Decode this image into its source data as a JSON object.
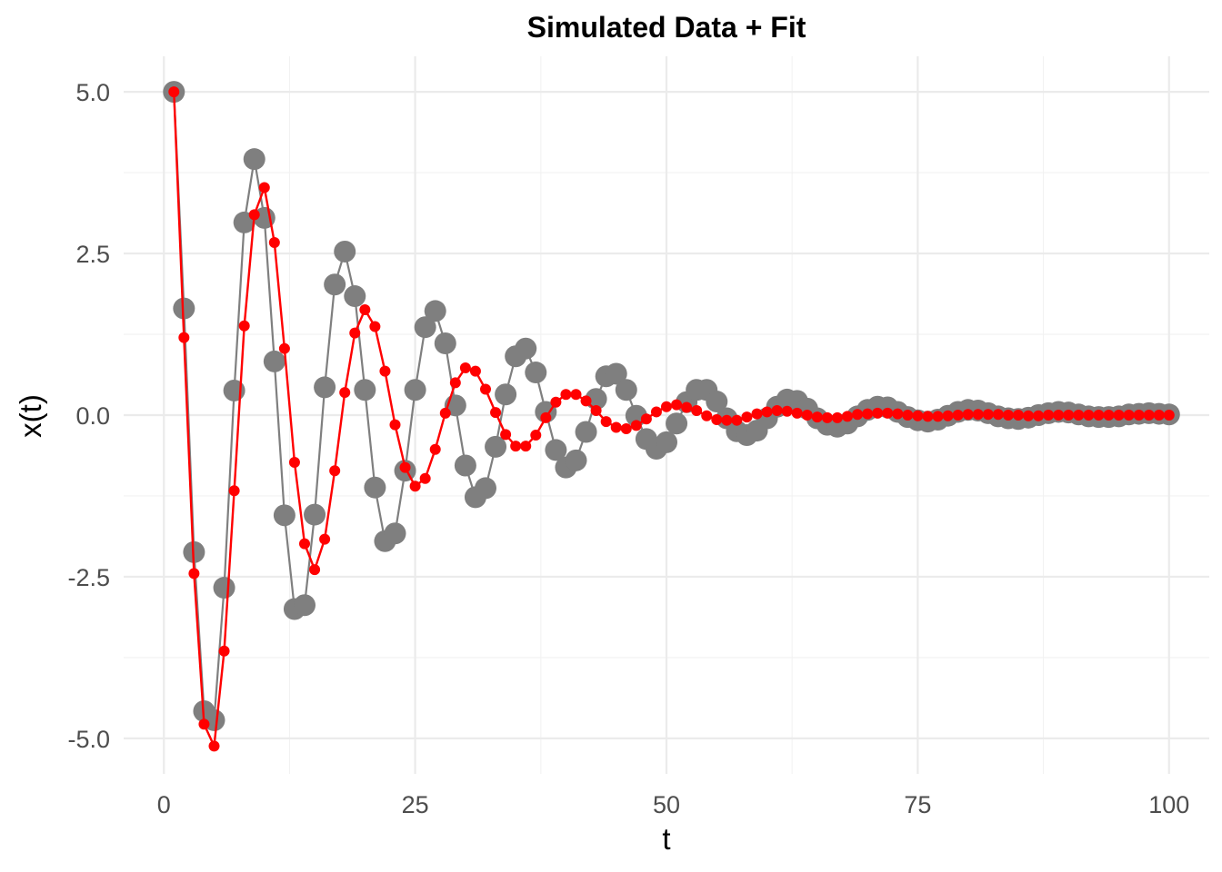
{
  "chart_data": {
    "type": "line",
    "title": "Simulated Data + Fit",
    "xlabel": "t",
    "ylabel": "x(t)",
    "xlim": [
      -4,
      104
    ],
    "ylim": [
      -5.55,
      5.55
    ],
    "x_ticks": [
      0,
      25,
      50,
      75,
      100
    ],
    "x_tick_labels": [
      "0",
      "25",
      "50",
      "75",
      "100"
    ],
    "y_ticks": [
      5.0,
      2.5,
      0.0,
      -2.5,
      -5.0
    ],
    "y_tick_labels": [
      "5.0",
      "2.5",
      "0.0",
      "-2.5",
      "-5.0"
    ],
    "grid": true,
    "x": [
      1,
      2,
      3,
      4,
      5,
      6,
      7,
      8,
      9,
      10,
      11,
      12,
      13,
      14,
      15,
      16,
      17,
      18,
      19,
      20,
      21,
      22,
      23,
      24,
      25,
      26,
      27,
      28,
      29,
      30,
      31,
      32,
      33,
      34,
      35,
      36,
      37,
      38,
      39,
      40,
      41,
      42,
      43,
      44,
      45,
      46,
      47,
      48,
      49,
      50,
      51,
      52,
      53,
      54,
      55,
      56,
      57,
      58,
      59,
      60,
      61,
      62,
      63,
      64,
      65,
      66,
      67,
      68,
      69,
      70,
      71,
      72,
      73,
      74,
      75,
      76,
      77,
      78,
      79,
      80,
      81,
      82,
      83,
      84,
      85,
      86,
      87,
      88,
      89,
      90,
      91,
      92,
      93,
      94,
      95,
      96,
      97,
      98,
      99,
      100
    ],
    "series": [
      {
        "color": "#7f7f7f",
        "marker": "large",
        "values": [
          5.0,
          1.65,
          -2.12,
          -4.58,
          -4.72,
          -2.67,
          0.38,
          2.98,
          3.96,
          3.05,
          0.83,
          -1.55,
          -3.0,
          -2.94,
          -1.54,
          0.43,
          2.02,
          2.53,
          1.84,
          0.39,
          -1.12,
          -1.95,
          -1.83,
          -0.86,
          0.39,
          1.36,
          1.61,
          1.11,
          0.15,
          -0.78,
          -1.27,
          -1.13,
          -0.49,
          0.32,
          0.91,
          1.03,
          0.66,
          0.05,
          -0.54,
          -0.81,
          -0.7,
          -0.26,
          0.25,
          0.6,
          0.64,
          0.39,
          -0.01,
          -0.37,
          -0.52,
          -0.42,
          -0.13,
          0.2,
          0.39,
          0.39,
          0.21,
          -0.05,
          -0.25,
          -0.31,
          -0.24,
          -0.05,
          0.13,
          0.24,
          0.22,
          0.1,
          -0.05,
          -0.15,
          -0.18,
          -0.13,
          -0.02,
          0.08,
          0.13,
          0.12,
          0.05,
          -0.03,
          -0.08,
          -0.1,
          -0.07,
          -0.01,
          0.05,
          0.08,
          0.07,
          0.03,
          -0.02,
          -0.05,
          -0.06,
          -0.04,
          0.0,
          0.03,
          0.05,
          0.04,
          0.01,
          -0.02,
          -0.03,
          -0.03,
          -0.02,
          0.01,
          0.02,
          0.03,
          0.02,
          0.01
        ]
      },
      {
        "color": "#ff0000",
        "marker": "small",
        "values": [
          5.0,
          1.2,
          -2.45,
          -4.78,
          -5.12,
          -3.65,
          -1.17,
          1.38,
          3.1,
          3.52,
          2.67,
          1.03,
          -0.73,
          -1.99,
          -2.39,
          -1.92,
          -0.86,
          0.35,
          1.27,
          1.63,
          1.37,
          0.68,
          -0.15,
          -0.81,
          -1.1,
          -0.98,
          -0.53,
          0.03,
          0.5,
          0.73,
          0.68,
          0.4,
          0.04,
          -0.3,
          -0.48,
          -0.48,
          -0.31,
          -0.04,
          0.2,
          0.32,
          0.32,
          0.22,
          0.07,
          -0.1,
          -0.19,
          -0.21,
          -0.16,
          -0.06,
          0.05,
          0.13,
          0.16,
          0.12,
          0.07,
          -0.01,
          -0.07,
          -0.08,
          -0.08,
          -0.03,
          0.02,
          0.05,
          0.07,
          0.06,
          0.03,
          0.0,
          -0.03,
          -0.04,
          -0.04,
          -0.02,
          0.01,
          0.02,
          0.03,
          0.03,
          0.02,
          0.0,
          -0.01,
          -0.02,
          -0.02,
          -0.01,
          0.0,
          0.01,
          0.01,
          0.01,
          0.01,
          0.0,
          0.0,
          -0.01,
          -0.01,
          0.0,
          0.0,
          0.0,
          0.0,
          0.0,
          0.0,
          0.0,
          0.0,
          0.0,
          0.0,
          0.0,
          0.0,
          0.0
        ]
      }
    ]
  }
}
